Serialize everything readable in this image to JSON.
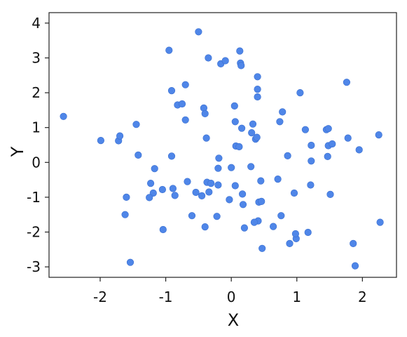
{
  "chart_data": {
    "type": "scatter",
    "title": "",
    "xlabel": "X",
    "ylabel": "Y",
    "xlim": [
      -2.78,
      2.52
    ],
    "ylim": [
      -3.3,
      4.3
    ],
    "xticks": [
      -2,
      -1,
      0,
      1,
      2
    ],
    "yticks": [
      -3,
      -2,
      -1,
      0,
      1,
      2,
      3,
      4
    ],
    "xtick_labels": [
      "-2",
      "-1",
      "0",
      "1",
      "2"
    ],
    "ytick_labels": [
      "-3",
      "-2",
      "-1",
      "0",
      "1",
      "2",
      "3",
      "4"
    ],
    "grid": false,
    "legend": false,
    "marker_color": "#4f86e8",
    "series": [
      {
        "x": [
          -2.56,
          -1.99,
          -1.72,
          -1.7,
          -1.45,
          -1.42,
          -1.6,
          -1.62,
          -1.17,
          -1.23,
          -1.19,
          -1.25,
          -1.05,
          -1.04,
          -0.95,
          -0.91,
          -0.91,
          -0.89,
          -0.86,
          -0.82,
          -0.75,
          -0.7,
          -0.7,
          -0.67,
          -0.6,
          -0.54,
          -0.5,
          -0.45,
          -0.42,
          -0.4,
          -0.4,
          -0.38,
          -0.37,
          -0.35,
          -0.34,
          -0.31,
          -0.22,
          -0.2,
          -0.2,
          -0.19,
          -0.16,
          -0.09,
          -0.03,
          0.0,
          0.06,
          0.06,
          0.07,
          0.12,
          0.13,
          0.14,
          0.15,
          0.16,
          0.18,
          0.2,
          0.3,
          0.31,
          0.33,
          0.37,
          0.39,
          0.4,
          0.4,
          0.41,
          0.42,
          0.45,
          0.46,
          0.47,
          0.17,
          0.05,
          0.64,
          0.71,
          0.74,
          0.76,
          0.78,
          0.86,
          0.89,
          0.96,
          0.99,
          1.05,
          1.13,
          1.17,
          1.21,
          1.22,
          1.22,
          1.45,
          1.47,
          1.48,
          1.48,
          1.51,
          1.54,
          1.76,
          1.78,
          1.86,
          1.89,
          1.95,
          2.25,
          2.27,
          -1.54,
          0.98,
          0.4,
          0.35
        ],
        "y": [
          1.32,
          0.63,
          0.62,
          0.76,
          1.09,
          0.21,
          -1.0,
          -1.5,
          -0.18,
          -0.6,
          -0.88,
          -1.01,
          -0.78,
          -1.93,
          3.22,
          2.06,
          0.18,
          -0.75,
          -0.95,
          1.65,
          1.68,
          2.23,
          1.22,
          -0.55,
          -1.53,
          -0.86,
          3.75,
          -0.96,
          1.56,
          1.4,
          -1.85,
          0.7,
          -0.57,
          3.0,
          -0.85,
          -0.6,
          -1.55,
          -0.17,
          -0.65,
          0.12,
          2.83,
          2.92,
          -1.07,
          -0.15,
          1.17,
          -0.67,
          0.47,
          0.45,
          3.2,
          2.85,
          2.78,
          0.98,
          -1.21,
          -1.88,
          -0.12,
          0.85,
          1.1,
          0.67,
          0.72,
          1.88,
          2.1,
          -1.68,
          -1.14,
          -0.53,
          -1.12,
          -2.47,
          -0.91,
          1.62,
          -1.84,
          -0.48,
          1.17,
          -1.53,
          1.45,
          0.19,
          -2.33,
          -0.88,
          -2.19,
          2.0,
          0.94,
          -2.01,
          -0.65,
          0.49,
          0.04,
          0.94,
          0.17,
          0.97,
          0.48,
          -0.92,
          0.53,
          2.3,
          0.7,
          -2.33,
          -2.97,
          0.36,
          0.79,
          -1.72,
          -2.87,
          -2.05,
          2.46,
          -1.72
        ]
      }
    ]
  }
}
